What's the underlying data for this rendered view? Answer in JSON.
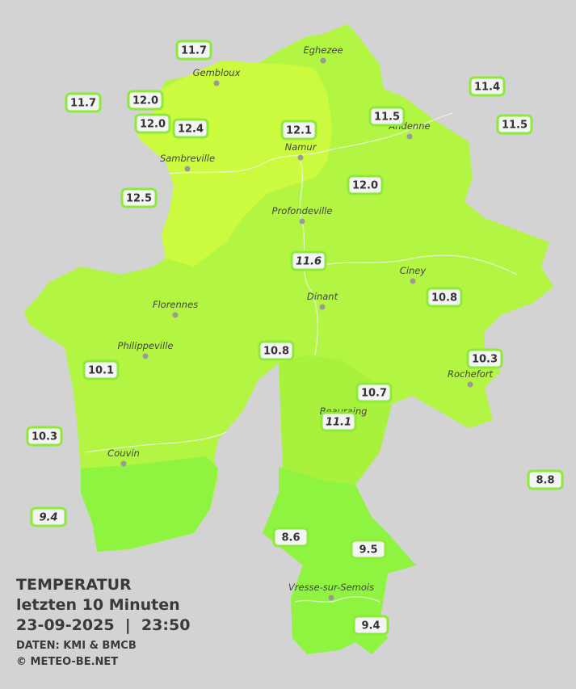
{
  "stations": [
    {
      "value": "11.7"
    },
    {
      "value": "11.7"
    },
    {
      "value": "12.0"
    },
    {
      "value": "12.0"
    },
    {
      "value": "12.4"
    },
    {
      "value": "12.1"
    },
    {
      "value": "11.5"
    },
    {
      "value": "11.4"
    },
    {
      "value": "11.5"
    },
    {
      "value": "12.5"
    },
    {
      "value": "12.0"
    },
    {
      "value": "11.6",
      "italic": true
    },
    {
      "value": "10.8"
    },
    {
      "value": "10.8"
    },
    {
      "value": "10.3"
    },
    {
      "value": "10.1"
    },
    {
      "value": "10.7"
    },
    {
      "value": "11.1",
      "italic": true
    },
    {
      "value": "10.3"
    },
    {
      "value": "8.8"
    },
    {
      "value": "9.4",
      "italic": true
    },
    {
      "value": "8.6"
    },
    {
      "value": "9.5"
    },
    {
      "value": "9.4"
    }
  ],
  "places": [
    {
      "name": "Eghezee"
    },
    {
      "name": "Gembloux"
    },
    {
      "name": "Andenne"
    },
    {
      "name": "Namur"
    },
    {
      "name": "Sambreville"
    },
    {
      "name": "Profondeville"
    },
    {
      "name": "Ciney"
    },
    {
      "name": "Dinant"
    },
    {
      "name": "Florennes"
    },
    {
      "name": "Philippeville"
    },
    {
      "name": "Rochefort"
    },
    {
      "name": "Beauraing"
    },
    {
      "name": "Couvin"
    },
    {
      "name": "Vresse-sur-Semois"
    }
  ],
  "caption": {
    "title": "TEMPERATUR",
    "subtitle": "letzten 10 Minuten",
    "datetime": "23-09-2025  |  23:50",
    "source": "DATEN: KMI & BMCB",
    "copyright": "© METEO-BE.NET"
  }
}
